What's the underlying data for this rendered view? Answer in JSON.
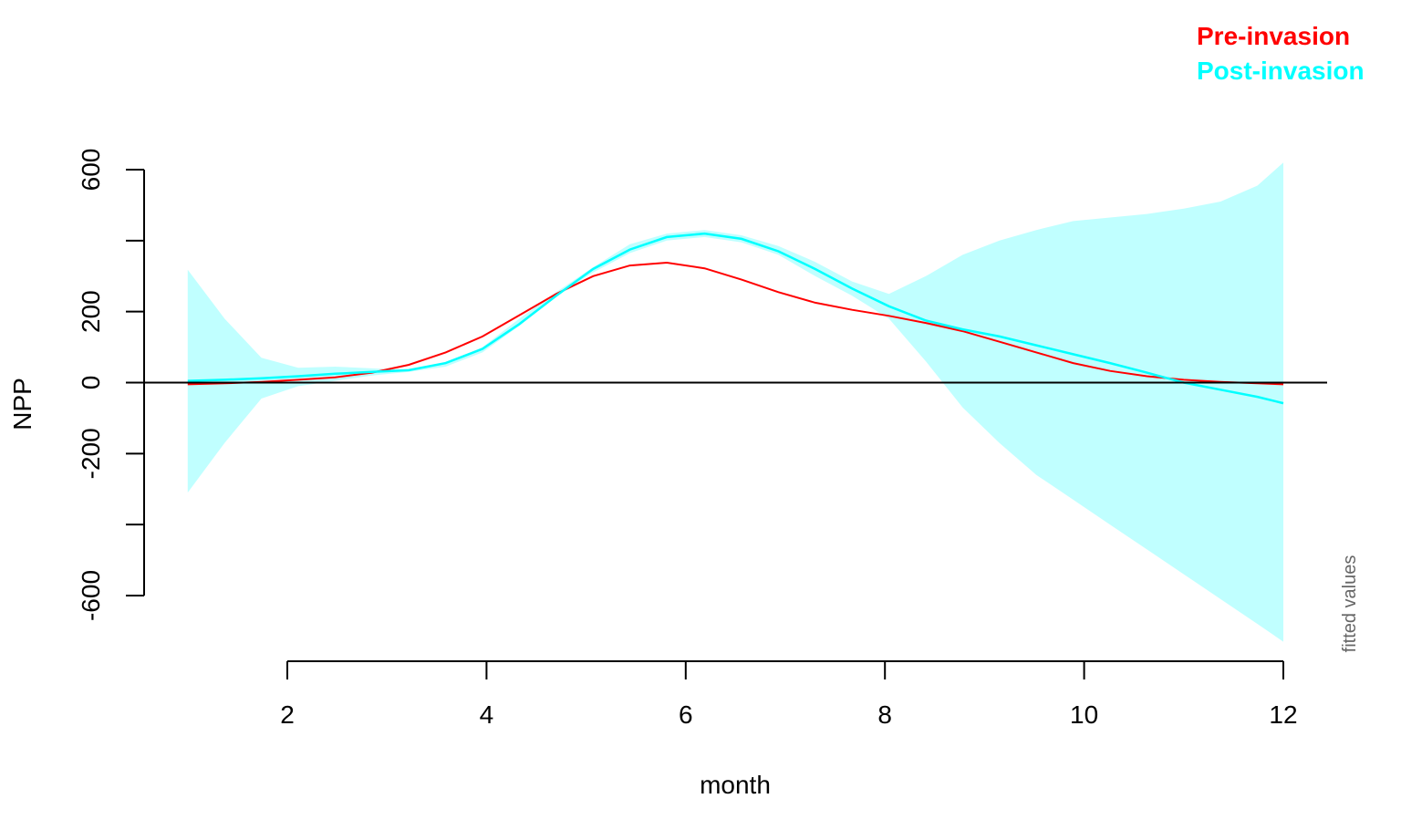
{
  "chart_data": {
    "type": "line",
    "title": "",
    "xlabel": "month",
    "ylabel": "NPP",
    "side_note": "fitted values",
    "xlim": [
      0.5,
      12.25
    ],
    "ylim": [
      -600,
      600
    ],
    "xticks": [
      2,
      4,
      6,
      8,
      10,
      12
    ],
    "yticks": [
      -600,
      -400,
      -200,
      0,
      200,
      400,
      600
    ],
    "ytick_labels_shown": [
      "600",
      "200",
      "0",
      "-200",
      "-600"
    ],
    "zero_line": true,
    "legend": {
      "placement": "top-right",
      "entries": [
        {
          "label": "Pre-invasion",
          "color": "#ff0000"
        },
        {
          "label": "Post-invasion",
          "color": "#00ffff"
        }
      ]
    },
    "band": {
      "color": "#c0ffff",
      "x": [
        1.0,
        1.37,
        1.74,
        2.11,
        2.48,
        2.85,
        3.22,
        3.59,
        3.96,
        4.33,
        4.7,
        5.07,
        5.44,
        5.81,
        6.19,
        6.56,
        6.93,
        7.3,
        7.67,
        8.04,
        8.41,
        8.78,
        9.15,
        9.52,
        9.89,
        10.26,
        10.63,
        11.0,
        11.37,
        11.74,
        12.0
      ],
      "upper": [
        318,
        180,
        70,
        42,
        45,
        40,
        35,
        55,
        100,
        180,
        255,
        325,
        390,
        420,
        430,
        415,
        385,
        340,
        285,
        250,
        300,
        360,
        400,
        430,
        455,
        465,
        475,
        490,
        510,
        555,
        620
      ],
      "lower": [
        -310,
        -170,
        -45,
        -10,
        5,
        20,
        30,
        45,
        85,
        160,
        245,
        310,
        365,
        400,
        410,
        395,
        360,
        300,
        245,
        180,
        60,
        -70,
        -170,
        -260,
        -330,
        -400,
        -470,
        -540,
        -610,
        -680,
        -730
      ]
    },
    "series": [
      {
        "name": "Pre-invasion",
        "color": "#ff0000",
        "x": [
          1.0,
          1.37,
          1.74,
          2.11,
          2.48,
          2.85,
          3.22,
          3.59,
          3.96,
          4.33,
          4.7,
          5.07,
          5.44,
          5.81,
          6.19,
          6.56,
          6.93,
          7.3,
          7.67,
          8.04,
          8.41,
          8.78,
          9.15,
          9.52,
          9.89,
          10.26,
          10.63,
          11.0,
          11.37,
          11.74,
          12.0
        ],
        "values": [
          -5,
          -2,
          2,
          8,
          15,
          28,
          50,
          85,
          130,
          190,
          250,
          300,
          330,
          338,
          322,
          290,
          255,
          225,
          205,
          188,
          168,
          145,
          115,
          85,
          55,
          33,
          18,
          8,
          2,
          -2,
          -5
        ]
      },
      {
        "name": "Post-invasion",
        "color": "#00ffff",
        "x": [
          1.0,
          1.37,
          1.74,
          2.11,
          2.48,
          2.85,
          3.22,
          3.59,
          3.96,
          4.33,
          4.7,
          5.07,
          5.44,
          5.81,
          6.19,
          6.56,
          6.93,
          7.3,
          7.67,
          8.04,
          8.41,
          8.78,
          9.15,
          9.52,
          9.89,
          10.26,
          10.63,
          11.0,
          11.37,
          11.74,
          12.0
        ],
        "values": [
          5,
          8,
          12,
          18,
          25,
          30,
          35,
          55,
          95,
          165,
          245,
          320,
          375,
          410,
          420,
          405,
          370,
          320,
          265,
          215,
          175,
          150,
          130,
          105,
          80,
          55,
          28,
          0,
          -20,
          -40,
          -58
        ]
      }
    ]
  }
}
